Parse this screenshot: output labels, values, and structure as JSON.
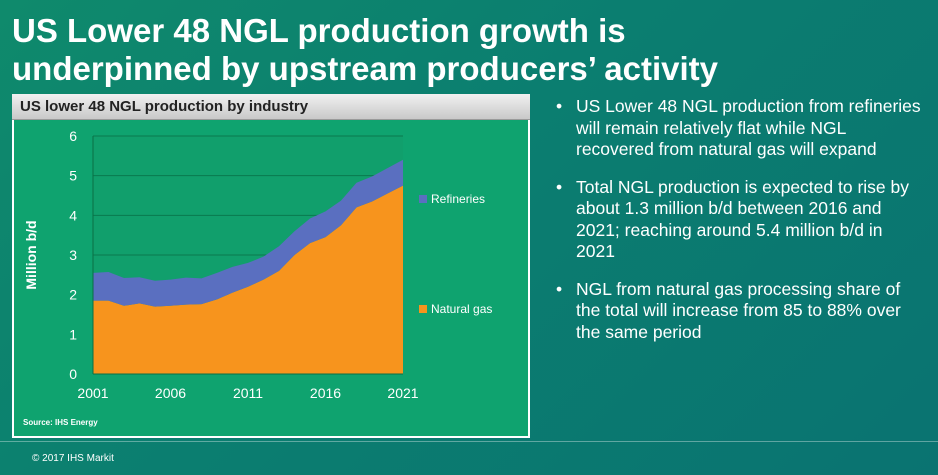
{
  "slide": {
    "title": "US Lower 48 NGL production growth is\nunderpinned by upstream producers’ activity"
  },
  "chart_panel": {
    "header": "US lower 48 NGL production by industry",
    "source": "Source: IHS Energy"
  },
  "chart_data": {
    "type": "area",
    "stacked": true,
    "title": "US lower 48 NGL production by industry",
    "ylabel": "Million b/d",
    "xlabel": "",
    "x": [
      2001,
      2002,
      2003,
      2004,
      2005,
      2006,
      2007,
      2008,
      2009,
      2010,
      2011,
      2012,
      2013,
      2014,
      2015,
      2016,
      2017,
      2018,
      2019,
      2020,
      2021
    ],
    "xticks": [
      2001,
      2006,
      2011,
      2016,
      2021
    ],
    "yticks": [
      0,
      1,
      2,
      3,
      4,
      5,
      6
    ],
    "ylim": [
      0,
      6
    ],
    "xlim": [
      2001,
      2021
    ],
    "grid": "horizontal",
    "legend_position": "right",
    "series": [
      {
        "name": "Natural gas",
        "color": "#f7941d",
        "values": [
          1.85,
          1.85,
          1.72,
          1.78,
          1.7,
          1.72,
          1.75,
          1.76,
          1.88,
          2.05,
          2.2,
          2.38,
          2.6,
          3.0,
          3.3,
          3.45,
          3.75,
          4.2,
          4.35,
          4.55,
          4.75
        ]
      },
      {
        "name": "Refineries",
        "color": "#5a6fc0",
        "values": [
          0.7,
          0.72,
          0.7,
          0.66,
          0.65,
          0.66,
          0.68,
          0.65,
          0.67,
          0.65,
          0.6,
          0.58,
          0.62,
          0.6,
          0.62,
          0.65,
          0.62,
          0.62,
          0.63,
          0.64,
          0.65
        ]
      }
    ]
  },
  "bullets": [
    "US Lower 48 NGL production from refineries will remain relatively flat while NGL recovered from natural gas will expand",
    "Total NGL production is expected to rise by about 1.3 million b/d between 2016 and 2021; reaching around 5.4 million b/d in 2021",
    "NGL from natural gas processing share of the total will increase from 85 to 88% over the same period"
  ],
  "bullet_marker": "•",
  "footer": "© 2017 IHS Markit"
}
